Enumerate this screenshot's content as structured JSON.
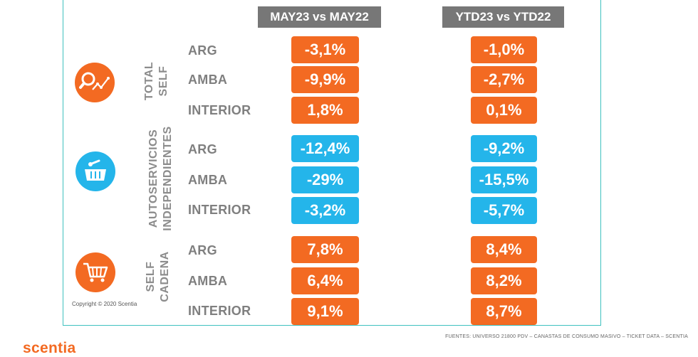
{
  "headers": {
    "col1": "MAY23 vs MAY22",
    "col2": "YTD23 vs YTD22"
  },
  "groups": [
    {
      "label_lines": [
        "TOTAL",
        "SELF"
      ],
      "icon": "search-chart-icon",
      "color": "#f36a22",
      "rows": [
        {
          "region": "ARG",
          "col1": "-3,1%",
          "col2": "-1,0%"
        },
        {
          "region": "AMBA",
          "col1": "-9,9%",
          "col2": "-2,7%"
        },
        {
          "region": "INTERIOR",
          "col1": "1,8%",
          "col2": "0,1%"
        }
      ]
    },
    {
      "label_lines": [
        "AUTOSERVICIOS",
        "INDEPENDIENTES"
      ],
      "icon": "basket-icon",
      "color": "#24b5ea",
      "rows": [
        {
          "region": "ARG",
          "col1": "-12,4%",
          "col2": "-9,2%"
        },
        {
          "region": "AMBA",
          "col1": "-29%",
          "col2": "-15,5%"
        },
        {
          "region": "INTERIOR",
          "col1": "-3,2%",
          "col2": "-5,7%"
        }
      ]
    },
    {
      "label_lines": [
        "SELF",
        "CADENA"
      ],
      "icon": "shopping-cart-icon",
      "color": "#f36a22",
      "rows": [
        {
          "region": "ARG",
          "col1": "7,8%",
          "col2": "8,4%"
        },
        {
          "region": "AMBA",
          "col1": "6,4%",
          "col2": "8,2%"
        },
        {
          "region": "INTERIOR",
          "col1": "9,1%",
          "col2": "8,7%"
        }
      ]
    }
  ],
  "copyright": "Copyright © 2020 Scentia",
  "sources": "FUENTES: UNIVERSO 21800 PDV – CANASTAS DE CONSUMO MASIVO – TICKET DATA  – SCENTIA",
  "logo": "scentia"
}
